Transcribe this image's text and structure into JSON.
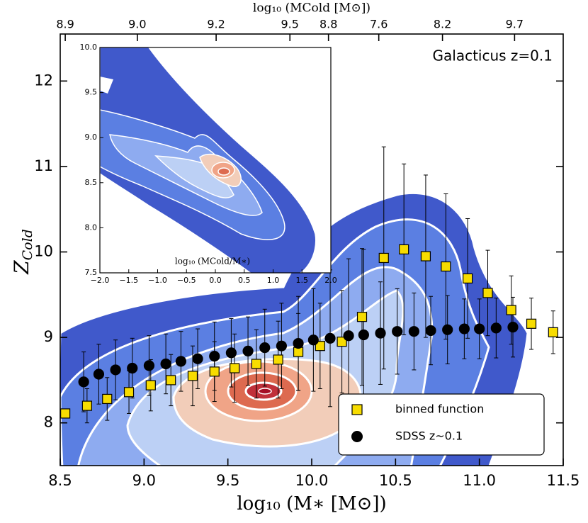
{
  "chart_data": {
    "type": "scatter",
    "annotation": "Galacticus z=0.1",
    "xlabel": "log₁₀ (M∗ [M⊙])",
    "ylabel": {
      "text": "Z",
      "subscript": "Cold"
    },
    "x2label": "log₁₀ (MCold [M⊙])",
    "xlim": [
      8.5,
      11.5
    ],
    "xticks": [
      8.5,
      {
        "value": 9,
        "label": "9.0"
      },
      9.5,
      {
        "value": 10,
        "label": "10.0"
      },
      10.5,
      {
        "value": 11,
        "label": "11.0"
      },
      11.5
    ],
    "ylim": [
      7.5,
      12.55
    ],
    "yticks": [
      8,
      9,
      10,
      11,
      12
    ],
    "x2ticks": [
      {
        "value": 8.53,
        "label": "8.9"
      },
      {
        "value": 8.96,
        "label": "9.0"
      },
      {
        "value": 9.43,
        "label": "9.2"
      },
      {
        "value": 9.87,
        "label": "9.5"
      },
      {
        "value": 10.1,
        "label": "8.8"
      },
      {
        "value": 10.4,
        "label": "7.6"
      },
      {
        "value": 10.78,
        "label": "8.2"
      },
      {
        "value": 11.21,
        "label": "9.7"
      }
    ],
    "legend": "lower right",
    "series": [
      {
        "name": "binned function",
        "color": "#f7dc00",
        "marker": "square",
        "x": [
          8.53,
          8.66,
          8.78,
          8.91,
          9.04,
          9.16,
          9.29,
          9.42,
          9.54,
          9.67,
          9.8,
          9.92,
          10.05,
          10.18,
          10.3,
          10.43,
          10.55,
          10.68,
          10.8,
          10.93,
          11.05,
          11.19,
          11.31,
          11.44
        ],
        "values": [
          8.11,
          8.2,
          8.28,
          8.36,
          8.44,
          8.5,
          8.55,
          8.6,
          8.64,
          8.69,
          8.74,
          8.83,
          8.9,
          8.95,
          9.24,
          9.93,
          10.03,
          9.95,
          9.83,
          9.69,
          9.52,
          9.32,
          9.16,
          9.06
        ],
        "errors": [
          0.05,
          0.2,
          0.25,
          0.25,
          0.3,
          0.3,
          0.35,
          0.35,
          0.4,
          0.4,
          0.45,
          0.45,
          0.5,
          0.6,
          0.8,
          1.3,
          1.0,
          0.95,
          0.85,
          0.7,
          0.5,
          0.4,
          0.3,
          0.25
        ]
      },
      {
        "name": "SDSS z~0.1",
        "color": "#000000",
        "marker": "circle",
        "x": [
          8.64,
          8.73,
          8.83,
          8.93,
          9.03,
          9.13,
          9.22,
          9.32,
          9.42,
          9.52,
          9.62,
          9.72,
          9.82,
          9.92,
          10.01,
          10.11,
          10.22,
          10.31,
          10.41,
          10.51,
          10.61,
          10.71,
          10.81,
          10.91,
          11.0,
          11.1,
          11.2
        ],
        "values": [
          8.48,
          8.57,
          8.62,
          8.64,
          8.67,
          8.69,
          8.72,
          8.75,
          8.78,
          8.82,
          8.84,
          8.88,
          8.9,
          8.93,
          8.97,
          8.99,
          9.02,
          9.03,
          9.05,
          9.07,
          9.07,
          9.08,
          9.09,
          9.1,
          9.1,
          9.11,
          9.12
        ],
        "errors": [
          0.35,
          0.35,
          0.35,
          0.35,
          0.35,
          0.35,
          0.35,
          0.35,
          0.4,
          0.4,
          0.4,
          0.45,
          0.5,
          0.55,
          0.6,
          0.8,
          0.9,
          1.0,
          0.6,
          0.5,
          0.45,
          0.4,
          0.4,
          0.35,
          0.35,
          0.35,
          0.35
        ]
      }
    ],
    "inset": {
      "xlabel": "log₁₀ (MCold/M∗)",
      "xlim": [
        -2,
        2
      ],
      "xticks": [
        {
          "value": -2,
          "label": "−2.0"
        },
        {
          "value": -1.5,
          "label": "−1.5"
        },
        {
          "value": -1,
          "label": "−1.0"
        },
        {
          "value": -0.5,
          "label": "−0.5"
        },
        {
          "value": 0,
          "label": "0.0"
        },
        0.5,
        {
          "value": 1,
          "label": "1.0"
        },
        1.5,
        {
          "value": 2,
          "label": "2.0"
        }
      ],
      "ylim": [
        7.5,
        10
      ],
      "yticks": [
        7.5,
        {
          "value": 8,
          "label": "8.0"
        },
        8.5,
        {
          "value": 9,
          "label": "9.0"
        },
        9.5,
        {
          "value": 10,
          "label": "10.0"
        }
      ]
    }
  }
}
